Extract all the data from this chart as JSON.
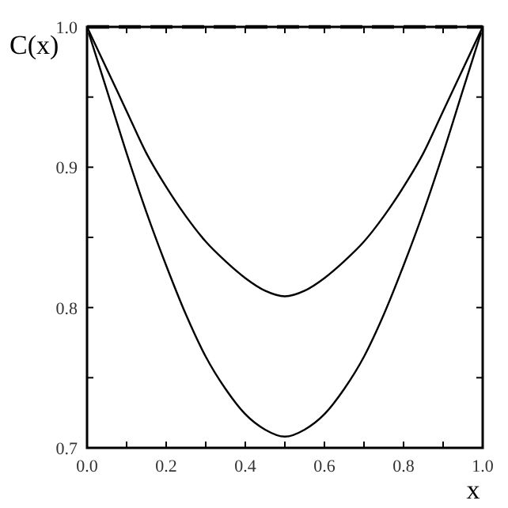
{
  "chart_data": {
    "type": "line",
    "xlabel": "x",
    "ylabel": "C(x)",
    "x": [
      0,
      0.05,
      0.1,
      0.15,
      0.2,
      0.25,
      0.3,
      0.35,
      0.4,
      0.45,
      0.5,
      0.55,
      0.6,
      0.65,
      0.7,
      0.75,
      0.8,
      0.85,
      0.9,
      0.95,
      1
    ],
    "series": [
      {
        "color": "#000000",
        "line_style": "dashed",
        "x": [
          0,
          1
        ],
        "values": [
          1,
          1
        ]
      },
      {
        "color": "#000000",
        "line_style": "solid",
        "values": [
          1,
          0.97,
          0.94,
          0.91,
          0.886,
          0.865,
          0.847,
          0.833,
          0.821,
          0.812,
          0.808,
          0.812,
          0.821,
          0.833,
          0.847,
          0.865,
          0.886,
          0.91,
          0.94,
          0.97,
          1
        ]
      },
      {
        "color": "#000000",
        "line_style": "solid",
        "x": [
          0.004,
          0.05,
          0.1,
          0.15,
          0.2,
          0.25,
          0.3,
          0.35,
          0.4,
          0.45,
          0.5,
          0.55,
          0.6,
          0.65,
          0.7,
          0.75,
          0.8,
          0.85,
          0.9,
          0.95,
          0.996
        ],
        "values": [
          0.996,
          0.955,
          0.91,
          0.868,
          0.83,
          0.795,
          0.765,
          0.742,
          0.724,
          0.713,
          0.708,
          0.713,
          0.724,
          0.742,
          0.765,
          0.795,
          0.83,
          0.868,
          0.91,
          0.955,
          0.996
        ]
      }
    ],
    "xlim": [
      0,
      1
    ],
    "ylim": [
      0.7,
      1
    ],
    "xticks": [
      {
        "value": 0,
        "label": "0.0"
      },
      {
        "value": 0.1,
        "label": null
      },
      0.2,
      {
        "value": 0.3,
        "label": null
      },
      0.4,
      {
        "value": 0.5,
        "label": null
      },
      0.6,
      {
        "value": 0.7,
        "label": null
      },
      0.8,
      {
        "value": 0.9,
        "label": null
      },
      {
        "value": 1,
        "label": "1.0"
      }
    ],
    "yticks": [
      0.7,
      {
        "value": 0.75,
        "label": null
      },
      0.8,
      {
        "value": 0.85,
        "label": null
      },
      0.9,
      {
        "value": 0.95,
        "label": null
      },
      {
        "value": 1,
        "label": "1.0"
      }
    ],
    "grid": false
  }
}
